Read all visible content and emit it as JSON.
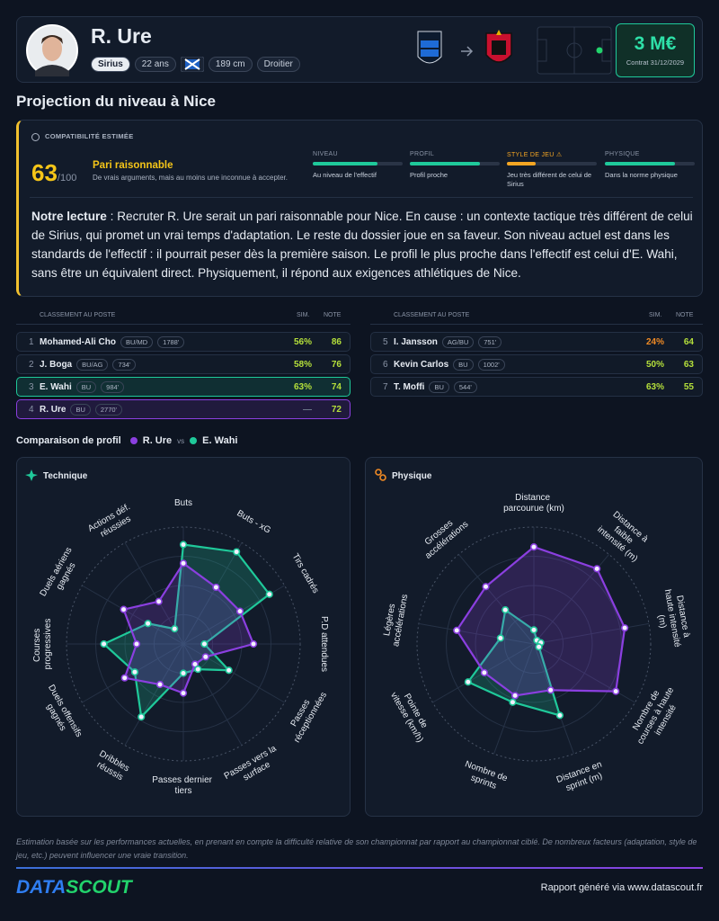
{
  "header": {
    "name": "R. Ure",
    "tags": [
      "Sirius",
      "22 ans",
      "189 cm",
      "Droitier"
    ],
    "value": "3 M€",
    "contract": "Contrat 31/12/2029"
  },
  "section_title": "Projection du niveau à Nice",
  "compatibility": {
    "label": "COMPATIBILITÉ ESTIMÉE",
    "score": 63,
    "max": "/100",
    "verdict": "Pari raisonnable",
    "description": "De vrais arguments, mais au moins une inconnue à accepter.",
    "criteria": [
      {
        "label": "NIVEAU",
        "level": 72,
        "color": "#1fc99a",
        "text": "Au niveau de l'effectif"
      },
      {
        "label": "PROFIL",
        "level": 78,
        "color": "#1fc99a",
        "text": "Profil proche"
      },
      {
        "label": "STYLE DE JEU ⚠",
        "level": 32,
        "color": "#f5a623",
        "text": "Jeu très différent de celui de Sirius"
      },
      {
        "label": "PHYSIQUE",
        "level": 78,
        "color": "#1fc99a",
        "text": "Dans la norme physique"
      }
    ]
  },
  "reading": {
    "lead": "Notre lecture",
    "text": " : Recruter R. Ure serait un pari raisonnable pour Nice. En cause : un contexte tactique très différent de celui de Sirius, qui promet un vrai temps d'adaptation. Le reste du dossier joue en sa faveur. Son niveau actuel est dans les standards de l'effectif : il pourrait peser dès la première saison. Le profil le plus proche dans l'effectif est celui d'E. Wahi, sans être un équivalent direct. Physiquement, il répond aux exigences athlétiques de Nice."
  },
  "ranking": {
    "title": "CLASSEMENT AU POSTE",
    "sim": "SIM.",
    "note": "NOTE",
    "left": [
      {
        "rank": 1,
        "name": "Mohamed-Ali Cho",
        "tags": [
          "BU/MD",
          "1788'"
        ],
        "sim": "56%",
        "sim_color": "#b5e03b",
        "note": 86
      },
      {
        "rank": 2,
        "name": "J. Boga",
        "tags": [
          "BU/AG",
          "734'"
        ],
        "sim": "58%",
        "sim_color": "#b5e03b",
        "note": 76
      },
      {
        "rank": 3,
        "name": "E. Wahi",
        "tags": [
          "BU",
          "984'"
        ],
        "sim": "63%",
        "sim_color": "#b5e03b",
        "note": 74,
        "highlight": "#1fc99a"
      },
      {
        "rank": 4,
        "name": "R. Ure",
        "tags": [
          "BU",
          "2770'"
        ],
        "sim": "—",
        "sim_color": "#6b7588",
        "note": 72,
        "highlight": "#8b3fe0"
      }
    ],
    "right": [
      {
        "rank": 5,
        "name": "I. Jansson",
        "tags": [
          "AG/BU",
          "751'"
        ],
        "sim": "24%",
        "sim_color": "#f08a24",
        "note": 64
      },
      {
        "rank": 6,
        "name": "Kevin Carlos",
        "tags": [
          "BU",
          "1002'"
        ],
        "sim": "50%",
        "sim_color": "#b5e03b",
        "note": 63
      },
      {
        "rank": 7,
        "name": "T. Moffi",
        "tags": [
          "BU",
          "544'"
        ],
        "sim": "63%",
        "sim_color": "#b5e03b",
        "note": 55
      }
    ]
  },
  "comparison": {
    "title": "Comparaison de profil",
    "vs": "vs"
  },
  "chart_data": [
    {
      "type": "radar",
      "title": "Technique",
      "categories": [
        "Buts",
        "Buts - xG",
        "Tirs cadrés",
        "P.D attendues",
        "Passes réceptionnées",
        "Passes vers la surface",
        "Passes dernier tiers",
        "Dribbles réussis",
        "Duels offensifs gagnés",
        "Courses progressives",
        "Duels aériens gagnés",
        "Actions déf. réussies"
      ],
      "rlim": [
        0,
        100
      ],
      "rticks": [
        25,
        50,
        75,
        100
      ],
      "series": [
        {
          "name": "R. Ure",
          "color": "#8b3fe0",
          "values": [
            69,
            56,
            56,
            60,
            22,
            20,
            42,
            40,
            58,
            40,
            59,
            42
          ]
        },
        {
          "name": "E. Wahi",
          "color": "#1fc99a",
          "values": [
            85,
            91,
            85,
            18,
            45,
            25,
            25,
            72,
            48,
            68,
            35,
            15
          ]
        }
      ]
    },
    {
      "type": "radar",
      "title": "Physique",
      "categories": [
        "Distance parcourue (km)",
        "Distance à faible intensité (m)",
        "Distance à haute intensité (m)",
        "Nombre de courses à haute intensité",
        "Distance en sprint (m)",
        "Nombre de sprints",
        "Pointe de vitesse (km/h)",
        "Légères accélérations",
        "Grosses accélérations"
      ],
      "rlim": [
        0,
        100
      ],
      "rticks": [
        25,
        50,
        75,
        100
      ],
      "series": [
        {
          "name": "R. Ure",
          "color": "#8b3fe0",
          "values": [
            83,
            84,
            79,
            81,
            42,
            47,
            49,
            67,
            64
          ]
        },
        {
          "name": "E. Wahi",
          "color": "#1fc99a",
          "values": [
            12,
            4,
            6,
            5,
            65,
            53,
            65,
            29,
            38
          ]
        }
      ]
    }
  ],
  "footer": {
    "note": "Estimation basée sur les performances actuelles, en prenant en compte la difficulté relative de son championnat par rapport au championnat ciblé. De nombreux facteurs (adaptation, style de jeu, etc.) peuvent influencer une vraie transition.",
    "logo_a": "DATA",
    "logo_b": "SCOUT",
    "credit": "Rapport généré via www.datascout.fr"
  }
}
